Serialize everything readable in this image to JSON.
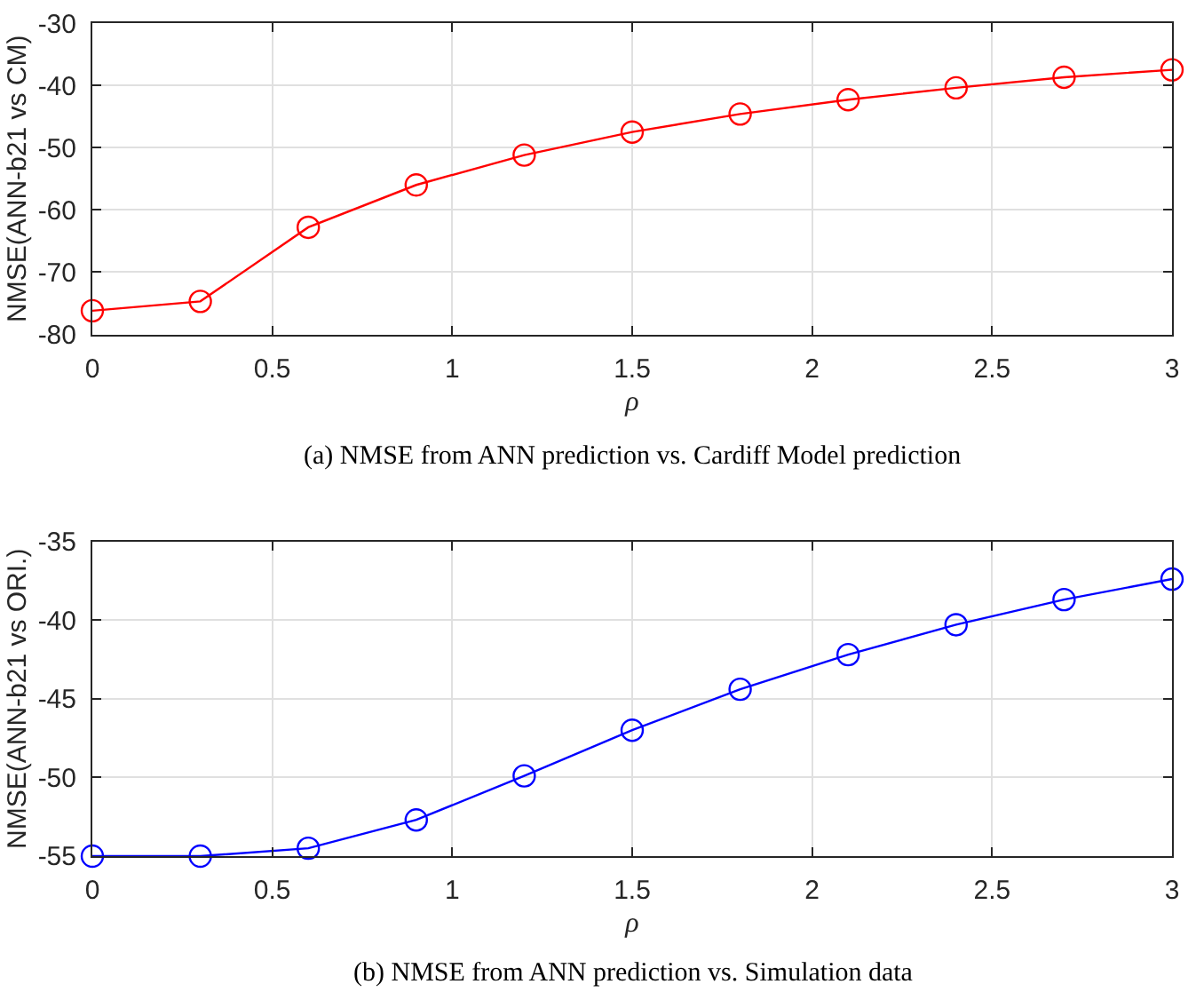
{
  "chart_data": [
    {
      "type": "line",
      "xlabel": "ρ",
      "ylabel": "NMSE(ANN-b21 vs CM)",
      "annotations": [
        "(a) NMSE from ANN prediction vs. Cardiff Model prediction"
      ],
      "x": [
        0,
        0.3,
        0.6,
        0.9,
        1.2,
        1.5,
        1.8,
        2.1,
        2.4,
        2.7,
        3
      ],
      "series": [
        {
          "color": "#ff0000",
          "values": [
            -76.2,
            -74.7,
            -62.8,
            -56,
            -51.2,
            -47.5,
            -44.6,
            -42.3,
            -40.4,
            -38.7,
            -37.5
          ]
        }
      ],
      "xlim": [
        0,
        3
      ],
      "xticks": [
        0,
        0.5,
        1,
        1.5,
        2,
        2.5,
        3
      ],
      "ylim": [
        -80,
        -30
      ],
      "yticks": [
        -80,
        -70,
        -60,
        -50,
        -40,
        -30
      ],
      "grid": true,
      "marker": "circle",
      "line_style": "solid"
    },
    {
      "type": "line",
      "xlabel": "ρ",
      "ylabel": "NMSE(ANN-b21 vs ORI.)",
      "annotations": [
        "(b) NMSE from ANN prediction vs. Simulation data"
      ],
      "x": [
        0,
        0.3,
        0.6,
        0.9,
        1.2,
        1.5,
        1.8,
        2.1,
        2.4,
        2.7,
        3
      ],
      "series": [
        {
          "color": "#0000ff",
          "values": [
            -55,
            -55,
            -54.5,
            -52.7,
            -49.9,
            -47,
            -44.4,
            -42.2,
            -40.3,
            -38.7,
            -37.4
          ]
        }
      ],
      "xlim": [
        0,
        3
      ],
      "xticks": [
        0,
        0.5,
        1,
        1.5,
        2,
        2.5,
        3
      ],
      "ylim": [
        -55,
        -35
      ],
      "yticks": [
        -55,
        -50,
        -45,
        -40,
        -35
      ],
      "grid": true,
      "marker": "circle",
      "line_style": "solid"
    }
  ]
}
